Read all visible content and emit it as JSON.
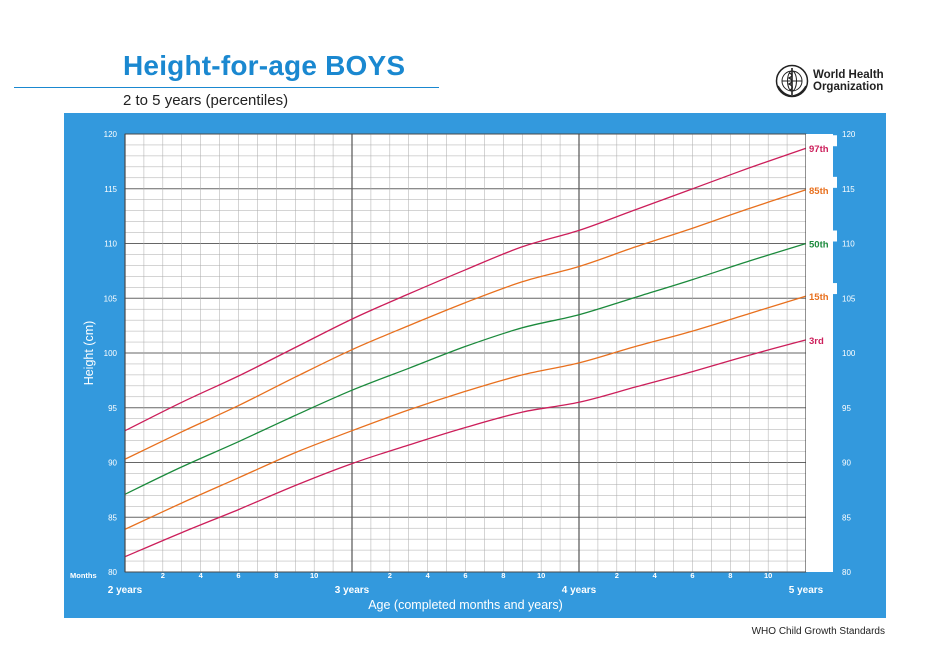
{
  "header": {
    "title": "Height-for-age BOYS",
    "subtitle": "2 to 5 years (percentiles)",
    "org_line1": "World Health",
    "org_line2": "Organization"
  },
  "footer": {
    "text": "WHO Child Growth Standards"
  },
  "colors": {
    "panel": "#3399dd",
    "title": "#1a88d0",
    "p3": "#cc1e5a",
    "p15": "#e8701e",
    "p50": "#1b8a3c",
    "p85": "#e8701e",
    "p97": "#cc1e5a"
  },
  "chart_data": {
    "type": "line",
    "title": "Height-for-age BOYS",
    "subtitle": "2 to 5 years (percentiles)",
    "xlabel": "Age (completed months and years)",
    "ylabel": "Height (cm)",
    "xlim": [
      24,
      60
    ],
    "ylim": [
      80,
      120
    ],
    "grid": true,
    "legend_position": "right-inline",
    "y_ticks": [
      80,
      85,
      90,
      95,
      100,
      105,
      110,
      115,
      120
    ],
    "x_month_ticks_label": "Months",
    "x_month_ticks": [
      "2",
      "4",
      "6",
      "8",
      "10",
      "2",
      "4",
      "6",
      "8",
      "10",
      "2",
      "4",
      "6",
      "8",
      "10"
    ],
    "x_year_labels": [
      "2 years",
      "3 years",
      "4 years",
      "5 years"
    ],
    "x": [
      24,
      27,
      30,
      33,
      36,
      39,
      42,
      45,
      48,
      51,
      54,
      57,
      60
    ],
    "series": [
      {
        "name": "97th",
        "values": [
          92.9,
          95.5,
          97.9,
          100.5,
          103.1,
          105.4,
          107.6,
          109.7,
          111.2,
          113.1,
          115.0,
          116.9,
          118.7
        ]
      },
      {
        "name": "85th",
        "values": [
          90.3,
          92.8,
          95.2,
          97.8,
          100.3,
          102.5,
          104.6,
          106.5,
          107.9,
          109.7,
          111.4,
          113.2,
          114.9
        ]
      },
      {
        "name": "50th",
        "values": [
          87.1,
          89.6,
          91.9,
          94.3,
          96.6,
          98.6,
          100.6,
          102.3,
          103.5,
          105.1,
          106.7,
          108.4,
          110.0
        ]
      },
      {
        "name": "15th",
        "values": [
          83.9,
          86.3,
          88.6,
          90.9,
          92.9,
          94.8,
          96.5,
          98.0,
          99.1,
          100.6,
          102.0,
          103.6,
          105.2
        ]
      },
      {
        "name": "3rd",
        "values": [
          81.4,
          83.6,
          85.7,
          87.9,
          89.9,
          91.6,
          93.2,
          94.6,
          95.5,
          96.9,
          98.3,
          99.8,
          101.2
        ]
      }
    ]
  }
}
